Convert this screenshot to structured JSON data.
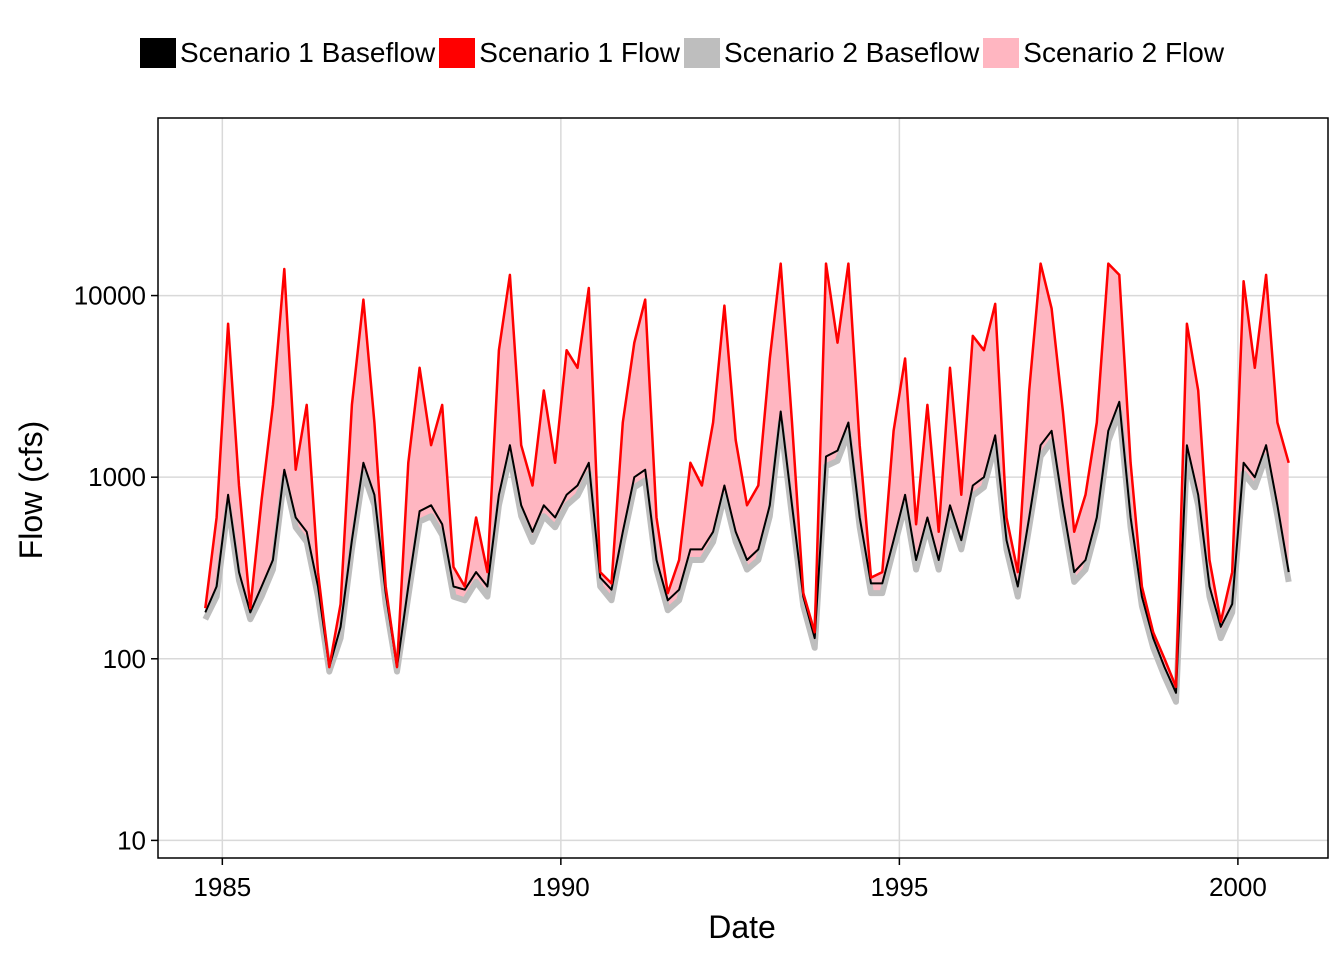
{
  "chart_data": {
    "type": "area",
    "xlabel": "Date",
    "ylabel": "Flow (cfs)",
    "x_scale": "date",
    "y_scale": "log10",
    "xlim": [
      "1984-01-20",
      "2001-05-01"
    ],
    "ylim": [
      8,
      95000
    ],
    "xticks": [
      "1985-01-01",
      "1990-01-01",
      "1995-01-01",
      "2000-01-01"
    ],
    "xtick_labels": [
      "1985",
      "1990",
      "1995",
      "2000"
    ],
    "yticks": [
      10,
      100,
      1000,
      10000
    ],
    "ytick_labels": [
      "10",
      "100",
      "1000",
      "10000"
    ],
    "grid": true,
    "legend_position": "top",
    "series": [
      {
        "name": "Scenario 1 Baseflow",
        "color": "#000000",
        "style": "line"
      },
      {
        "name": "Scenario 1 Flow",
        "color": "#ff0000",
        "style": "line"
      },
      {
        "name": "Scenario 2 Baseflow",
        "color": "#bebebe",
        "style": "line"
      },
      {
        "name": "Scenario 2 Flow",
        "color": "#ffb6c1",
        "style": "area"
      }
    ],
    "dates": [
      "1984-10-01",
      "1984-12-01",
      "1985-02-01",
      "1985-04-01",
      "1985-06-01",
      "1985-08-01",
      "1985-10-01",
      "1985-12-01",
      "1986-02-01",
      "1986-04-01",
      "1986-06-01",
      "1986-08-01",
      "1986-10-01",
      "1986-12-01",
      "1987-02-01",
      "1987-04-01",
      "1987-06-01",
      "1987-08-01",
      "1987-10-01",
      "1987-12-01",
      "1988-02-01",
      "1988-04-01",
      "1988-06-01",
      "1988-08-01",
      "1988-10-01",
      "1988-12-01",
      "1989-02-01",
      "1989-04-01",
      "1989-06-01",
      "1989-08-01",
      "1989-10-01",
      "1989-12-01",
      "1990-02-01",
      "1990-04-01",
      "1990-06-01",
      "1990-08-01",
      "1990-10-01",
      "1990-12-01",
      "1991-02-01",
      "1991-04-01",
      "1991-06-01",
      "1991-08-01",
      "1991-10-01",
      "1991-12-01",
      "1992-02-01",
      "1992-04-01",
      "1992-06-01",
      "1992-08-01",
      "1992-10-01",
      "1992-12-01",
      "1993-02-01",
      "1993-04-01",
      "1993-06-01",
      "1993-08-01",
      "1993-10-01",
      "1993-12-01",
      "1994-02-01",
      "1994-04-01",
      "1994-06-01",
      "1994-08-01",
      "1994-10-01",
      "1994-12-01",
      "1995-02-01",
      "1995-04-01",
      "1995-06-01",
      "1995-08-01",
      "1995-10-01",
      "1995-12-01",
      "1996-02-01",
      "1996-04-01",
      "1996-06-01",
      "1996-08-01",
      "1996-10-01",
      "1996-12-01",
      "1997-02-01",
      "1997-04-01",
      "1997-06-01",
      "1997-08-01",
      "1997-10-01",
      "1997-12-01",
      "1998-02-01",
      "1998-04-01",
      "1998-06-01",
      "1998-08-01",
      "1998-10-01",
      "1998-12-01",
      "1999-02-01",
      "1999-04-01",
      "1999-06-01",
      "1999-08-01",
      "1999-10-01",
      "1999-12-01",
      "2000-02-01",
      "2000-04-01",
      "2000-06-01",
      "2000-08-01",
      "2000-10-01"
    ],
    "scenario1_flow": [
      190,
      600,
      7000,
      900,
      190,
      750,
      2500,
      14000,
      1100,
      2500,
      300,
      90,
      200,
      2500,
      9500,
      2000,
      250,
      90,
      1200,
      4000,
      1500,
      2500,
      320,
      250,
      600,
      300,
      5000,
      13000,
      1500,
      900,
      3000,
      1200,
      5000,
      4000,
      11000,
      300,
      260,
      2000,
      5500,
      9500,
      600,
      230,
      350,
      1200,
      900,
      2000,
      8800,
      1600,
      700,
      900,
      4500,
      15000,
      2000,
      230,
      140,
      15000,
      5500,
      15000,
      1500,
      280,
      300,
      1800,
      4500,
      550,
      2500,
      500,
      4000,
      800,
      6000,
      5000,
      9000,
      600,
      300,
      3000,
      15000,
      8500,
      2300,
      500,
      800,
      2000,
      15000,
      13000,
      1200,
      250,
      140,
      100,
      70,
      7000,
      3000,
      350,
      160,
      300,
      12000,
      4000,
      13000,
      2000,
      1200
    ],
    "scenario1_baseflow": [
      180,
      250,
      800,
      300,
      180,
      250,
      350,
      1100,
      600,
      500,
      250,
      90,
      150,
      450,
      1200,
      800,
      230,
      90,
      250,
      650,
      700,
      550,
      250,
      240,
      300,
      250,
      800,
      1500,
      700,
      500,
      700,
      600,
      800,
      900,
      1200,
      280,
      240,
      500,
      1000,
      1100,
      350,
      210,
      240,
      400,
      400,
      500,
      900,
      500,
      350,
      400,
      700,
      2300,
      700,
      220,
      130,
      1300,
      1400,
      2000,
      600,
      260,
      260,
      450,
      800,
      350,
      600,
      350,
      700,
      450,
      900,
      1000,
      1700,
      450,
      250,
      600,
      1500,
      1800,
      700,
      300,
      350,
      600,
      1800,
      2600,
      600,
      220,
      130,
      90,
      65,
      1500,
      800,
      250,
      150,
      200,
      1200,
      1000,
      1500,
      700,
      300
    ],
    "scenario2_baseflow": [
      165,
      220,
      700,
      270,
      165,
      220,
      310,
      1000,
      530,
      440,
      220,
      85,
      130,
      400,
      1050,
      700,
      200,
      85,
      220,
      570,
      610,
      480,
      220,
      210,
      265,
      220,
      700,
      1300,
      610,
      440,
      610,
      530,
      700,
      790,
      1050,
      250,
      210,
      440,
      880,
      960,
      310,
      185,
      210,
      350,
      350,
      440,
      790,
      440,
      310,
      350,
      610,
      2000,
      610,
      195,
      115,
      1150,
      1230,
      1750,
      530,
      230,
      230,
      400,
      700,
      310,
      530,
      310,
      610,
      400,
      790,
      880,
      1500,
      400,
      220,
      530,
      1300,
      1580,
      610,
      265,
      310,
      530,
      1580,
      2280,
      530,
      195,
      115,
      80,
      58,
      1300,
      700,
      220,
      130,
      180,
      1050,
      880,
      1300,
      610,
      265
    ],
    "scenario2_flow": [
      190,
      600,
      7000,
      900,
      190,
      750,
      2500,
      14000,
      1100,
      2500,
      300,
      90,
      200,
      2500,
      9500,
      2000,
      250,
      90,
      1200,
      4000,
      1500,
      2500,
      320,
      250,
      600,
      300,
      5000,
      13000,
      1500,
      900,
      3000,
      1200,
      5000,
      4000,
      11000,
      300,
      260,
      2000,
      5500,
      9500,
      600,
      230,
      350,
      1200,
      900,
      2000,
      8800,
      1600,
      700,
      900,
      4500,
      15000,
      2000,
      230,
      140,
      15000,
      5500,
      15000,
      1500,
      280,
      300,
      1800,
      4500,
      550,
      2500,
      500,
      4000,
      800,
      6000,
      5000,
      9000,
      600,
      300,
      3000,
      15000,
      8500,
      2300,
      500,
      800,
      2000,
      15000,
      13000,
      1200,
      250,
      140,
      100,
      70,
      7000,
      3000,
      350,
      160,
      300,
      12000,
      4000,
      13000,
      2000,
      1200
    ]
  }
}
